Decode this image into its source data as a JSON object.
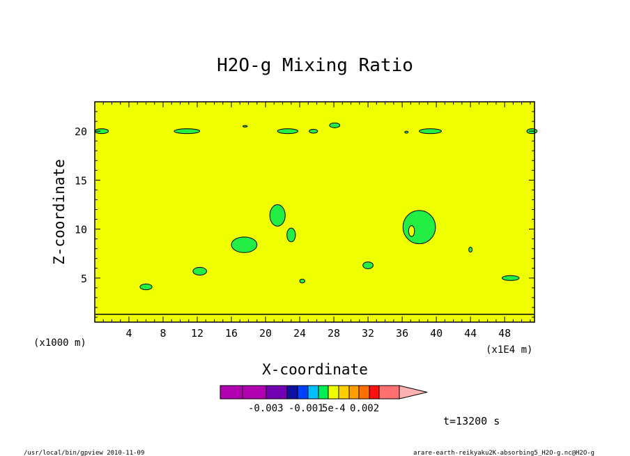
{
  "chart_data": {
    "type": "heatmap",
    "title": "H2O-g Mixing Ratio",
    "xlabel": "X-coordinate",
    "ylabel": "Z-coordinate",
    "x_unit_left": "(x1000 m)",
    "x_unit_right": "(x1E4 m)",
    "xlim": [
      0,
      51.5
    ],
    "ylim": [
      0.5,
      23
    ],
    "x_ticks": [
      4,
      8,
      12,
      16,
      20,
      24,
      28,
      32,
      36,
      40,
      44,
      48
    ],
    "y_ticks": [
      5,
      10,
      15,
      20
    ],
    "background_value_color": "#f0ff00",
    "patch_color": "#22ee44",
    "patches": [
      {
        "cx": 0.8,
        "cy": 20.0,
        "rx": 0.8,
        "ry": 0.25
      },
      {
        "cx": 10.8,
        "cy": 20.0,
        "rx": 1.5,
        "ry": 0.25
      },
      {
        "cx": 17.6,
        "cy": 20.5,
        "rx": 0.25,
        "ry": 0.08
      },
      {
        "cx": 22.6,
        "cy": 20.0,
        "rx": 1.2,
        "ry": 0.25
      },
      {
        "cx": 25.6,
        "cy": 20.0,
        "rx": 0.5,
        "ry": 0.2
      },
      {
        "cx": 28.1,
        "cy": 20.6,
        "rx": 0.6,
        "ry": 0.25
      },
      {
        "cx": 39.3,
        "cy": 20.0,
        "rx": 1.3,
        "ry": 0.25
      },
      {
        "cx": 36.5,
        "cy": 19.9,
        "rx": 0.2,
        "ry": 0.1
      },
      {
        "cx": 51.2,
        "cy": 20.0,
        "rx": 0.6,
        "ry": 0.25
      },
      {
        "cx": 21.4,
        "cy": 11.4,
        "rx": 0.9,
        "ry": 1.1
      },
      {
        "cx": 17.5,
        "cy": 8.4,
        "rx": 1.5,
        "ry": 0.8
      },
      {
        "cx": 23.0,
        "cy": 9.4,
        "rx": 0.5,
        "ry": 0.7
      },
      {
        "cx": 38.0,
        "cy": 10.2,
        "rx": 1.9,
        "ry": 1.7
      },
      {
        "cx": 44.0,
        "cy": 7.9,
        "rx": 0.2,
        "ry": 0.25
      },
      {
        "cx": 12.3,
        "cy": 5.7,
        "rx": 0.8,
        "ry": 0.4
      },
      {
        "cx": 6.0,
        "cy": 4.1,
        "rx": 0.7,
        "ry": 0.3
      },
      {
        "cx": 24.3,
        "cy": 4.7,
        "rx": 0.3,
        "ry": 0.2
      },
      {
        "cx": 32.0,
        "cy": 6.3,
        "rx": 0.6,
        "ry": 0.35
      },
      {
        "cx": 48.7,
        "cy": 5.0,
        "rx": 1.0,
        "ry": 0.25
      }
    ],
    "holes": [
      {
        "cx": 37.1,
        "cy": 9.8,
        "rx": 0.35,
        "ry": 0.55
      }
    ],
    "surface_line_z": 1.3,
    "colorbar": {
      "colors": [
        "#b000b0",
        "#b000b0",
        "#7000b0",
        "#1010a0",
        "#0040ff",
        "#00c0ff",
        "#00ee55",
        "#f0ff00",
        "#ffd000",
        "#ffa000",
        "#ff7000",
        "#ff1010",
        "#ff7070",
        "#ffb0b0"
      ],
      "labels": [
        "-0.003",
        "-0.001",
        "5e-4",
        "0.002"
      ]
    }
  },
  "footer": {
    "time": "t=13200 s",
    "left_note": "/usr/local/bin/gpview  2010-11-09",
    "right_note": "arare-earth-reikyaku2K-absorbing5_H2O-g.nc@H2O-g"
  }
}
